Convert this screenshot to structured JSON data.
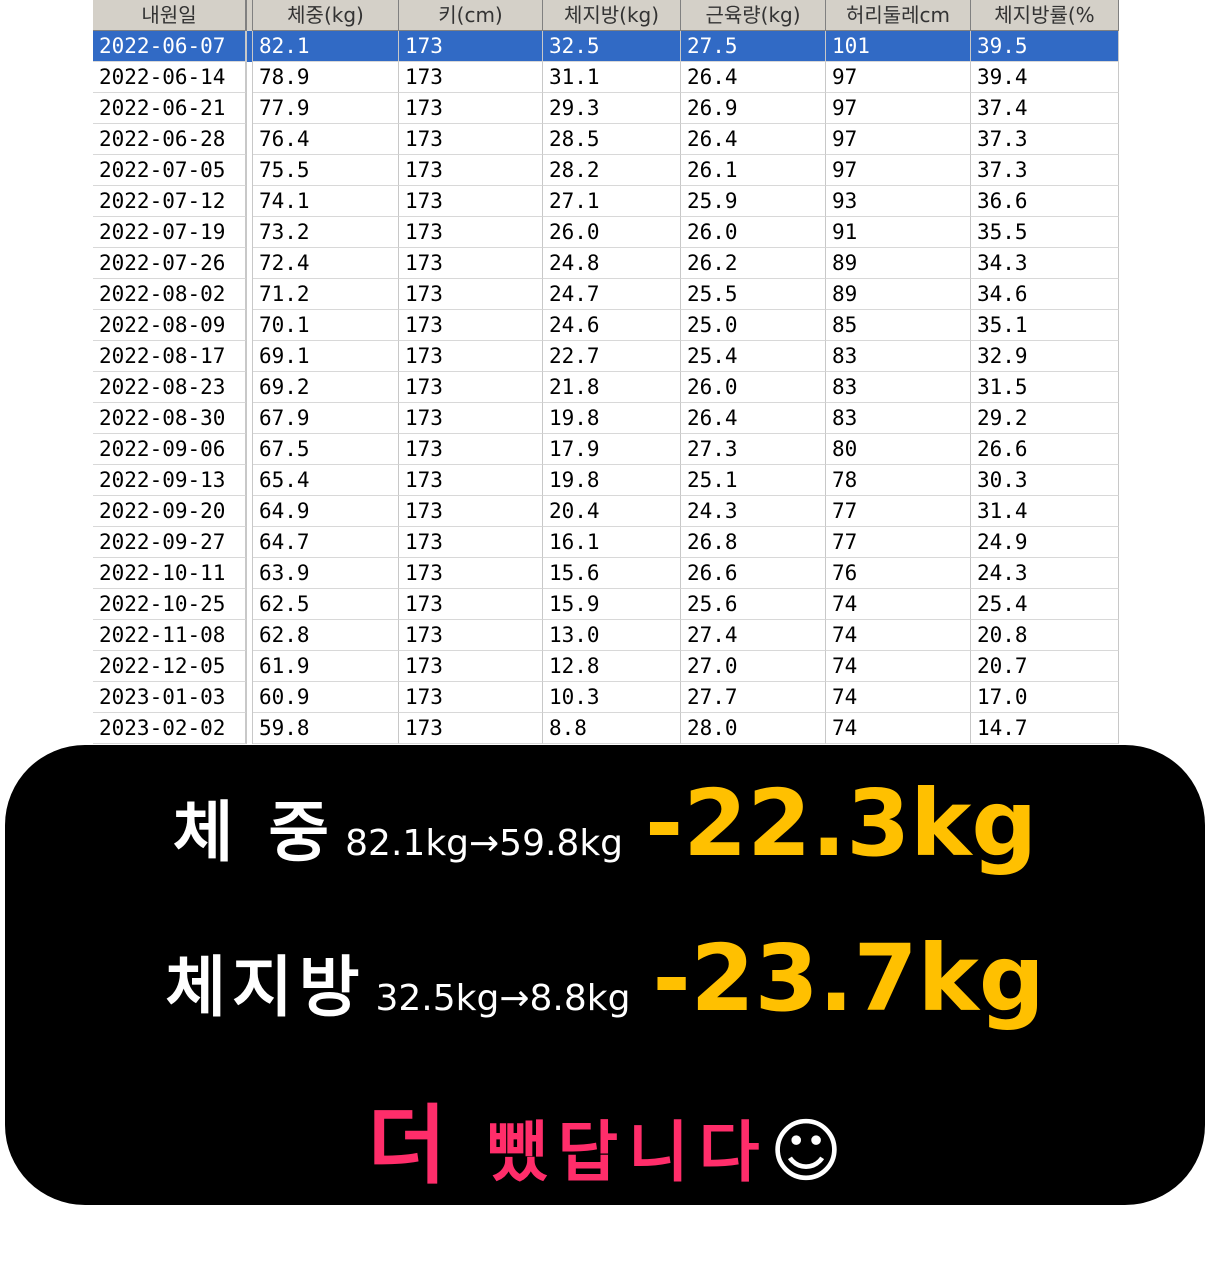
{
  "table": {
    "headers": [
      "내원일",
      "체중(kg)",
      "키(cm)",
      "체지방(kg)",
      "근육량(kg)",
      "허리둘레cm",
      "체지방률(%"
    ],
    "rows": [
      [
        "2022-06-07",
        "82.1",
        "173",
        "32.5",
        "27.5",
        "101",
        "39.5"
      ],
      [
        "2022-06-14",
        "78.9",
        "173",
        "31.1",
        "26.4",
        "97",
        "39.4"
      ],
      [
        "2022-06-21",
        "77.9",
        "173",
        "29.3",
        "26.9",
        "97",
        "37.4"
      ],
      [
        "2022-06-28",
        "76.4",
        "173",
        "28.5",
        "26.4",
        "97",
        "37.3"
      ],
      [
        "2022-07-05",
        "75.5",
        "173",
        "28.2",
        "26.1",
        "97",
        "37.3"
      ],
      [
        "2022-07-12",
        "74.1",
        "173",
        "27.1",
        "25.9",
        "93",
        "36.6"
      ],
      [
        "2022-07-19",
        "73.2",
        "173",
        "26.0",
        "26.0",
        "91",
        "35.5"
      ],
      [
        "2022-07-26",
        "72.4",
        "173",
        "24.8",
        "26.2",
        "89",
        "34.3"
      ],
      [
        "2022-08-02",
        "71.2",
        "173",
        "24.7",
        "25.5",
        "89",
        "34.6"
      ],
      [
        "2022-08-09",
        "70.1",
        "173",
        "24.6",
        "25.0",
        "85",
        "35.1"
      ],
      [
        "2022-08-17",
        "69.1",
        "173",
        "22.7",
        "25.4",
        "83",
        "32.9"
      ],
      [
        "2022-08-23",
        "69.2",
        "173",
        "21.8",
        "26.0",
        "83",
        "31.5"
      ],
      [
        "2022-08-30",
        "67.9",
        "173",
        "19.8",
        "26.4",
        "83",
        "29.2"
      ],
      [
        "2022-09-06",
        "67.5",
        "173",
        "17.9",
        "27.3",
        "80",
        "26.6"
      ],
      [
        "2022-09-13",
        "65.4",
        "173",
        "19.8",
        "25.1",
        "78",
        "30.3"
      ],
      [
        "2022-09-20",
        "64.9",
        "173",
        "20.4",
        "24.3",
        "77",
        "31.4"
      ],
      [
        "2022-09-27",
        "64.7",
        "173",
        "16.1",
        "26.8",
        "77",
        "24.9"
      ],
      [
        "2022-10-11",
        "63.9",
        "173",
        "15.6",
        "26.6",
        "76",
        "24.3"
      ],
      [
        "2022-10-25",
        "62.5",
        "173",
        "15.9",
        "25.6",
        "74",
        "25.4"
      ],
      [
        "2022-11-08",
        "62.8",
        "173",
        "13.0",
        "27.4",
        "74",
        "20.8"
      ],
      [
        "2022-12-05",
        "61.9",
        "173",
        "12.8",
        "27.0",
        "74",
        "20.7"
      ],
      [
        "2023-01-03",
        "60.9",
        "173",
        "10.3",
        "27.7",
        "74",
        "17.0"
      ],
      [
        "2023-02-02",
        "59.8",
        "173",
        "8.8",
        "28.0",
        "74",
        "14.7"
      ]
    ]
  },
  "banner": {
    "weight": {
      "label": "체 중",
      "change": "82.1kg→59.8kg",
      "result": "-22.3kg"
    },
    "fat": {
      "label": "체지방",
      "change": "32.5kg→8.8kg",
      "result": "-23.7kg"
    },
    "closing": {
      "emphasis": "더",
      "text": "뺐답니다",
      "icon": "☺"
    }
  }
}
